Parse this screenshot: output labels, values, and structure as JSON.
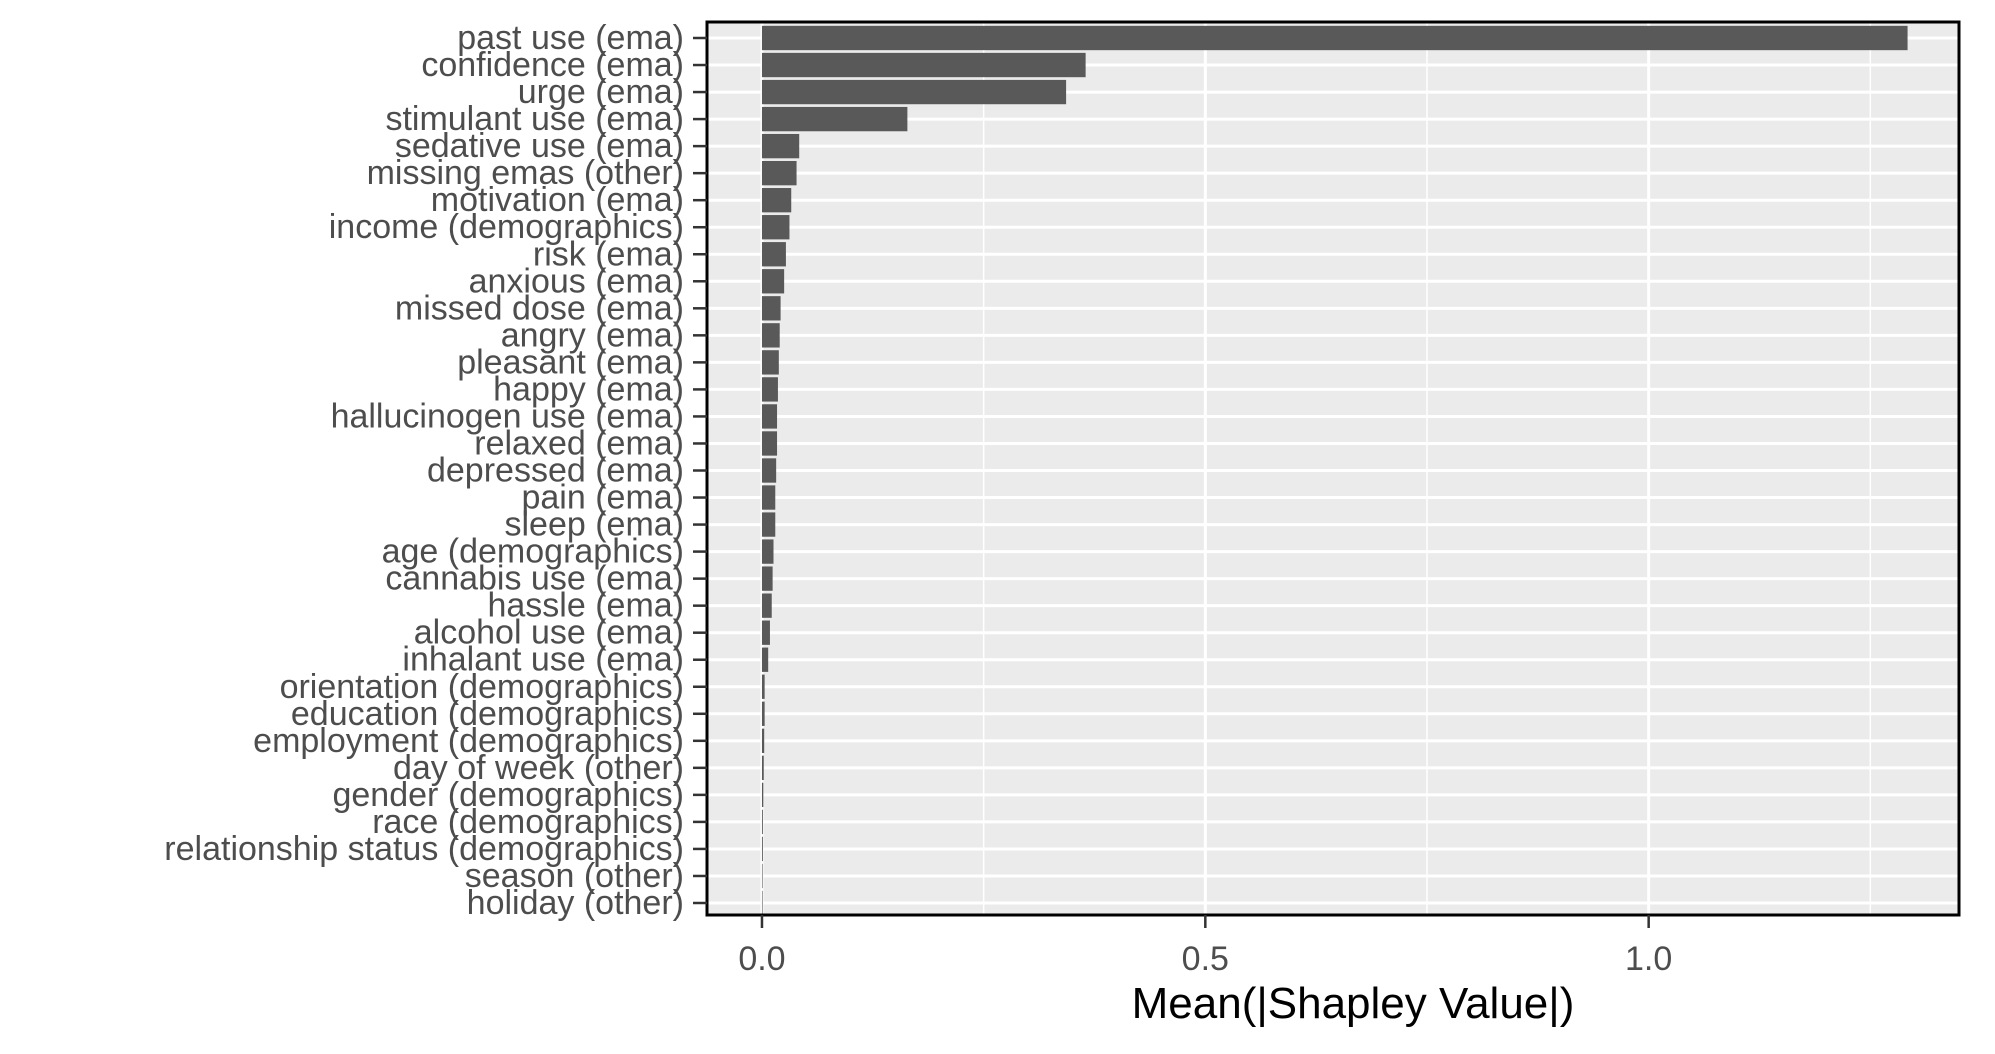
{
  "chart_data": {
    "type": "bar",
    "orientation": "horizontal",
    "xlabel": "Mean(|Shapley Value|)",
    "ylabel": "",
    "xlim": [
      -0.062,
      1.35
    ],
    "xticks": [
      0.0,
      0.5,
      1.0
    ],
    "xtick_labels": [
      "0.0",
      "0.5",
      "1.0"
    ],
    "grid": true,
    "bar_color": "#595959",
    "panel_background": "#ebebeb",
    "categories": [
      "past use (ema)",
      "confidence (ema)",
      "urge (ema)",
      "stimulant use (ema)",
      "sedative use (ema)",
      "missing emas (other)",
      "motivation (ema)",
      "income (demographics)",
      "risk (ema)",
      "anxious (ema)",
      "missed dose (ema)",
      "angry (ema)",
      "pleasant (ema)",
      "happy (ema)",
      "hallucinogen use (ema)",
      "relaxed (ema)",
      "depressed (ema)",
      "pain (ema)",
      "sleep (ema)",
      "age (demographics)",
      "cannabis use (ema)",
      "hassle (ema)",
      "alcohol use (ema)",
      "inhalant use (ema)",
      "orientation (demographics)",
      "education (demographics)",
      "employment (demographics)",
      "day of week (other)",
      "gender (demographics)",
      "race (demographics)",
      "relationship status (demographics)",
      "season (other)",
      "holiday (other)"
    ],
    "values": [
      1.292,
      0.365,
      0.343,
      0.164,
      0.042,
      0.039,
      0.033,
      0.031,
      0.027,
      0.025,
      0.021,
      0.02,
      0.019,
      0.018,
      0.017,
      0.017,
      0.016,
      0.015,
      0.015,
      0.013,
      0.012,
      0.011,
      0.009,
      0.007,
      0.003,
      0.003,
      0.0025,
      0.002,
      0.0015,
      0.001,
      0.001,
      0.0005,
      0.0003
    ]
  }
}
